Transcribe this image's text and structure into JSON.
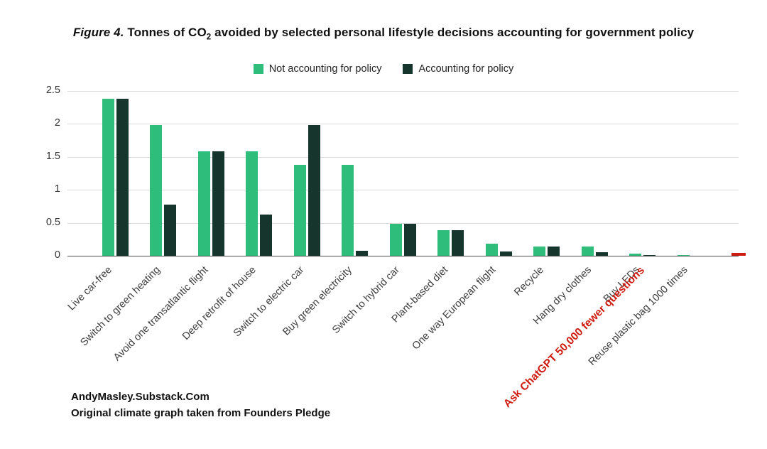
{
  "title": {
    "prefix": "Figure 4.",
    "part1": " Tonnes of CO",
    "sub": "2",
    "part2": " avoided by selected personal lifestyle decisions accounting for government policy"
  },
  "footer": {
    "line1": "AndyMasley.Substack.Com",
    "line2": "Original climate graph taken from Founders Pledge"
  },
  "chart_data": {
    "type": "bar",
    "title": "Figure 4. Tonnes of CO₂ avoided by selected personal lifestyle decisions accounting for government policy",
    "grid": true,
    "legend_position": "top",
    "ylim": [
      0,
      2.5
    ],
    "yticks": [
      "2.5",
      "2",
      "1.5",
      "1",
      "0.5",
      "0"
    ],
    "ytick_values": [
      2.5,
      2,
      1.5,
      1,
      0.5,
      0
    ],
    "categories": [
      "Live car-free",
      "Switch to green heating",
      "Avoid one transatlantic flight",
      "Deep retrofit of house",
      "Switch to electric car",
      "Buy green electricity",
      "Switch to hybrid car",
      "Plant-based diet",
      "One way European flight",
      "Recycle",
      "Hang dry clothes",
      "Buy LEDs",
      "Reuse plastic bag 1000 times",
      "Ask ChatGPT 50,000 fewer questions"
    ],
    "series": [
      {
        "name": "Not accounting for policy",
        "color": "#2ebd7b",
        "values": [
          2.38,
          1.98,
          1.58,
          1.58,
          1.38,
          1.38,
          0.48,
          0.39,
          0.18,
          0.14,
          0.14,
          0.03,
          0.01,
          0
        ]
      },
      {
        "name": "Accounting for policy",
        "color": "#16352c",
        "values": [
          2.38,
          0.78,
          1.58,
          0.62,
          1.98,
          0.08,
          0.48,
          0.39,
          0.06,
          0.14,
          0.05,
          0.01,
          0,
          0
        ]
      }
    ],
    "highlight": {
      "category": "Ask ChatGPT 50,000 fewer questions",
      "index": 13,
      "value": 0.04,
      "color": "#cf1c10",
      "label_color": "#cf1c10"
    }
  }
}
